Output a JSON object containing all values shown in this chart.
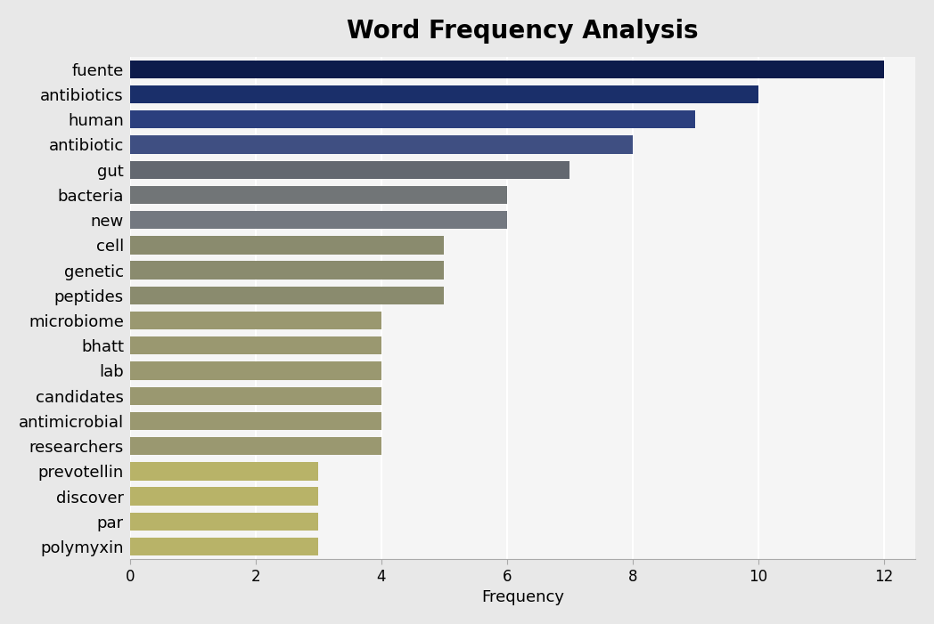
{
  "categories": [
    "fuente",
    "antibiotics",
    "human",
    "antibiotic",
    "gut",
    "bacteria",
    "new",
    "cell",
    "genetic",
    "peptides",
    "microbiome",
    "bhatt",
    "lab",
    "candidates",
    "antimicrobial",
    "researchers",
    "prevotellin",
    "discover",
    "par",
    "polymyxin"
  ],
  "values": [
    12,
    10,
    9,
    8,
    7,
    6,
    6,
    5,
    5,
    5,
    4,
    4,
    4,
    4,
    4,
    4,
    3,
    3,
    3,
    3
  ],
  "bar_colors": [
    "#0D1B4B",
    "#1A2F6A",
    "#2B3F7E",
    "#3F4F82",
    "#636870",
    "#717577",
    "#737880",
    "#8A8B6E",
    "#8A8B6E",
    "#8A8B6E",
    "#9A9870",
    "#9A9870",
    "#9A9870",
    "#9A9870",
    "#9A9870",
    "#9A9870",
    "#B8B368",
    "#B8B368",
    "#B8B368",
    "#B8B368"
  ],
  "title": "Word Frequency Analysis",
  "xlabel": "Frequency",
  "xlim": [
    0,
    12.5
  ],
  "xticks": [
    0,
    2,
    4,
    6,
    8,
    10,
    12
  ],
  "outer_background": "#E8E8E8",
  "plot_background": "#F5F5F5",
  "title_fontsize": 20,
  "label_fontsize": 13,
  "tick_fontsize": 12,
  "bar_height": 0.72
}
